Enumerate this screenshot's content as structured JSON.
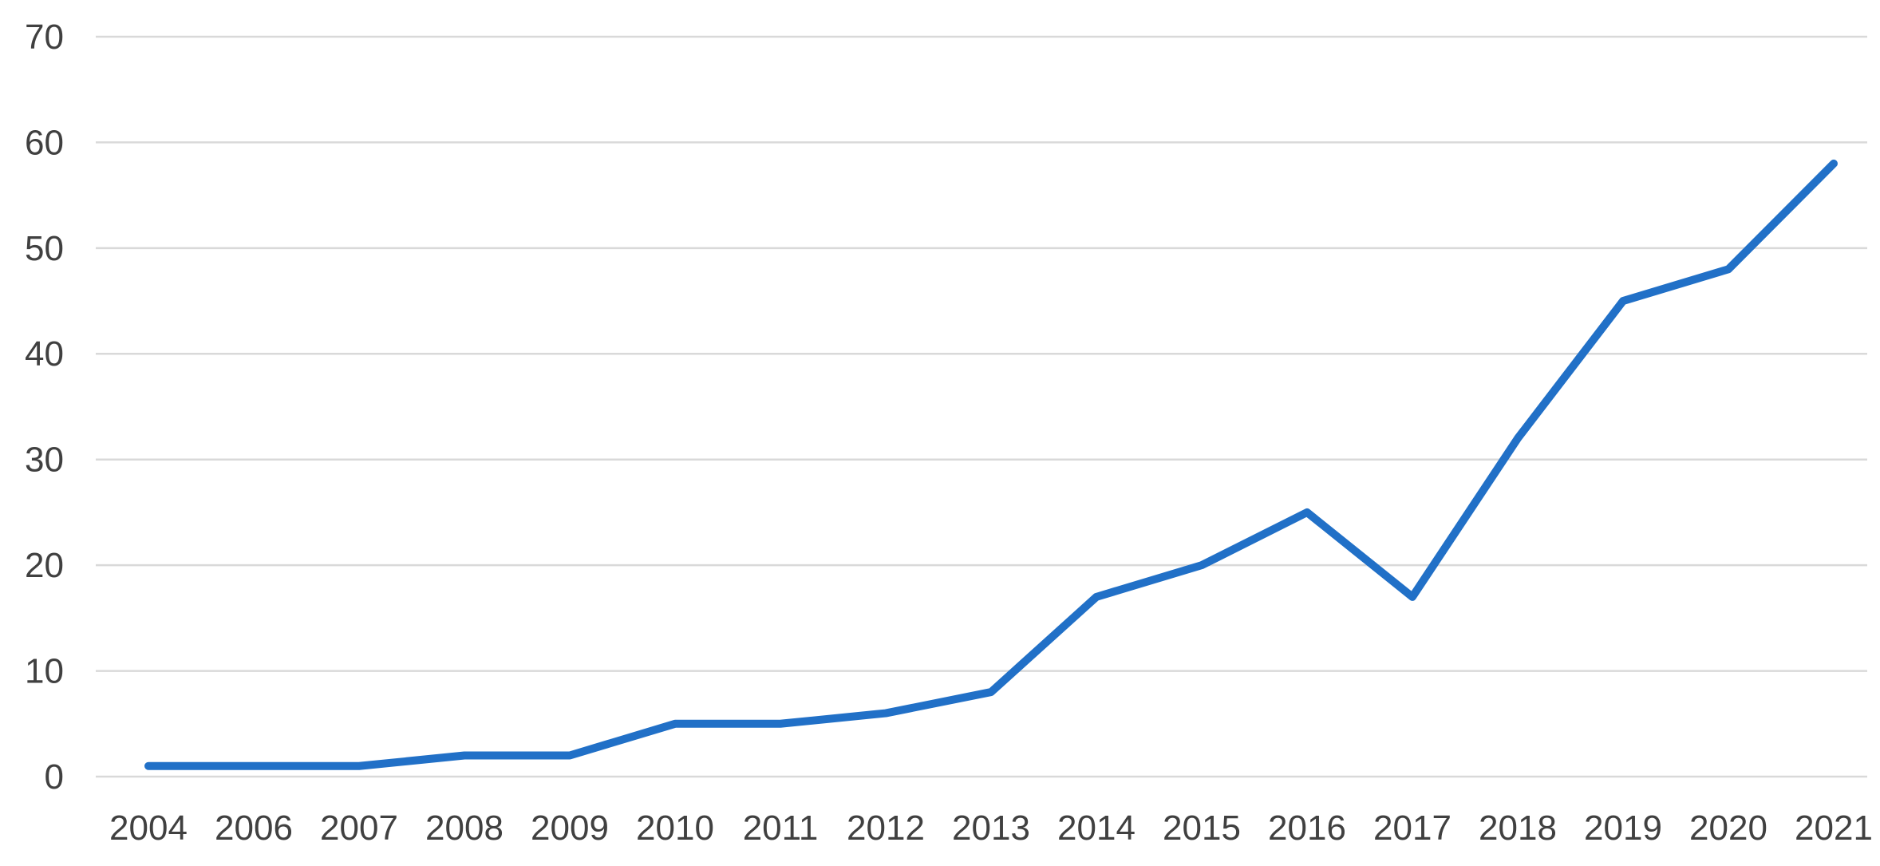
{
  "chart_data": {
    "type": "line",
    "title": "",
    "xlabel": "",
    "ylabel": "",
    "categories": [
      "2004",
      "2006",
      "2007",
      "2008",
      "2009",
      "2010",
      "2011",
      "2012",
      "2013",
      "2014",
      "2015",
      "2016",
      "2017",
      "2018",
      "2019",
      "2020",
      "2021"
    ],
    "series": [
      {
        "name": "",
        "values": [
          1,
          1,
          1,
          2,
          2,
          5,
          5,
          6,
          8,
          17,
          20,
          25,
          17,
          32,
          45,
          48,
          58
        ]
      }
    ],
    "ylim": [
      0,
      70
    ],
    "yticks": [
      0,
      10,
      20,
      30,
      40,
      50,
      60,
      70
    ],
    "grid": true,
    "gridlines": "horizontal",
    "legend": false,
    "legend_position": "none",
    "line_color": "#2170c7",
    "gridline_color": "#d9d9d9",
    "tick_label_color": "#404040",
    "background_color": "#ffffff"
  }
}
